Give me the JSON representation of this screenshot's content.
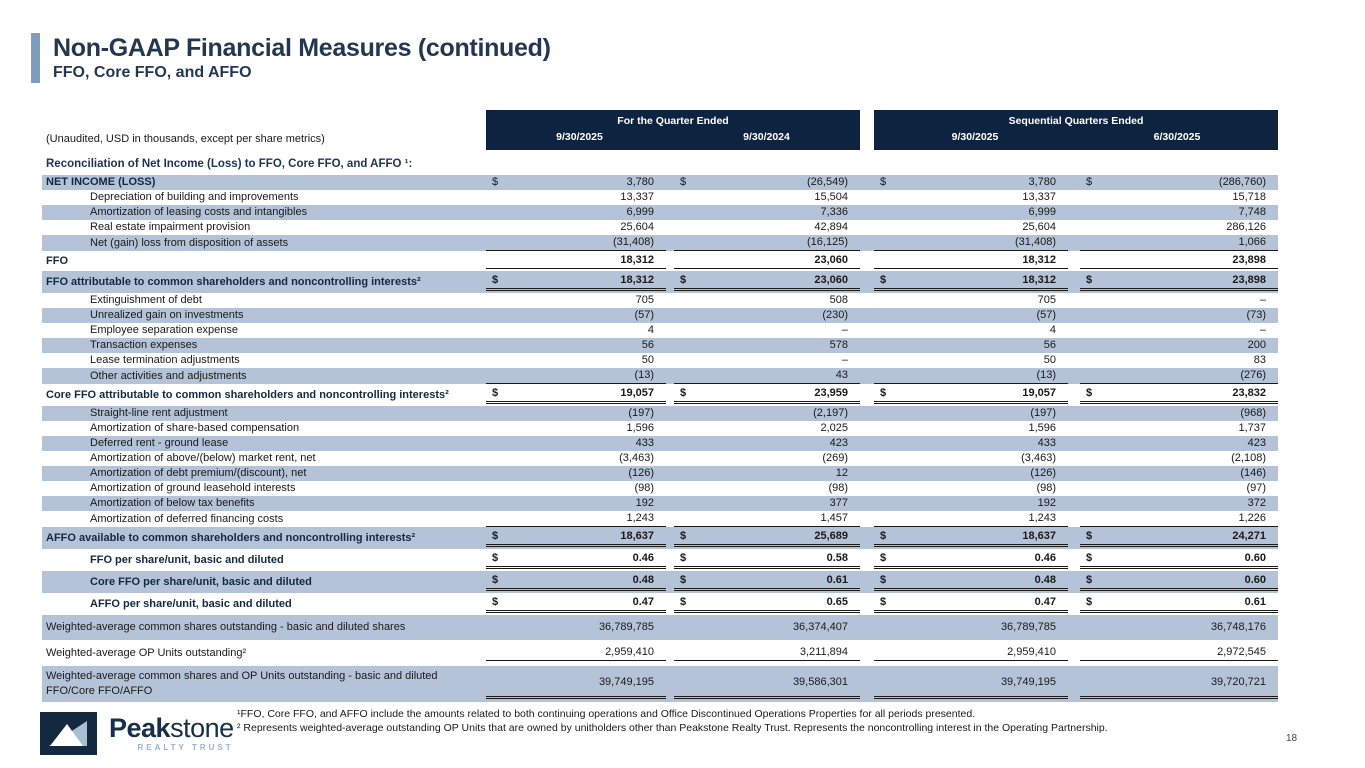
{
  "header": {
    "title": "Non-GAAP Financial Measures (continued)",
    "subtitle": "FFO, Core FFO, and AFFO"
  },
  "table": {
    "unaudited_note": "(Unaudited, USD in thousands, except per share metrics)",
    "section_heading": "Reconciliation of Net Income (Loss) to FFO, Core FFO, and AFFO ¹:",
    "col_groups": [
      {
        "label": "For the Quarter Ended",
        "cols": [
          "9/30/2025",
          "9/30/2024"
        ]
      },
      {
        "label": "Sequential Quarters Ended",
        "cols": [
          "9/30/2025",
          "6/30/2025"
        ]
      }
    ],
    "rows": [
      {
        "label": "NET INCOME (LOSS)",
        "values": [
          "3,780",
          "(26,549)",
          "3,780",
          "(286,760)"
        ],
        "dollar": true,
        "boldLabel": true,
        "boldValues": false,
        "shaded": true,
        "indent": false,
        "rule": "none",
        "size": "std"
      },
      {
        "label": "Depreciation of building and improvements",
        "values": [
          "13,337",
          "15,504",
          "13,337",
          "15,718"
        ],
        "dollar": false,
        "boldLabel": false,
        "boldValues": false,
        "shaded": false,
        "indent": true,
        "rule": "none",
        "size": "std"
      },
      {
        "label": "Amortization of leasing costs and intangibles",
        "values": [
          "6,999",
          "7,336",
          "6,999",
          "7,748"
        ],
        "dollar": false,
        "boldLabel": false,
        "boldValues": false,
        "shaded": true,
        "indent": true,
        "rule": "none",
        "size": "std"
      },
      {
        "label": "Real estate impairment provision",
        "values": [
          "25,604",
          "42,894",
          "25,604",
          "286,126"
        ],
        "dollar": false,
        "boldLabel": false,
        "boldValues": false,
        "shaded": false,
        "indent": true,
        "rule": "none",
        "size": "std"
      },
      {
        "label": "Net (gain) loss from disposition of assets",
        "values": [
          "(31,408)",
          "(16,125)",
          "(31,408)",
          "1,066"
        ],
        "dollar": false,
        "boldLabel": false,
        "boldValues": false,
        "shaded": true,
        "indent": true,
        "rule": "s",
        "size": "std"
      },
      {
        "label": "FFO",
        "values": [
          "18,312",
          "23,060",
          "18,312",
          "23,898"
        ],
        "dollar": false,
        "boldLabel": true,
        "boldValues": true,
        "shaded": false,
        "indent": false,
        "rule": "s",
        "size": "pad"
      },
      {
        "label": "FFO attributable to common shareholders and noncontrolling interests²",
        "values": [
          "18,312",
          "23,060",
          "18,312",
          "23,898"
        ],
        "dollar": true,
        "boldLabel": true,
        "boldValues": true,
        "shaded": true,
        "indent": false,
        "rule": "d",
        "size": "pad"
      },
      {
        "label": "Extinguishment of debt",
        "values": [
          "705",
          "508",
          "705",
          "–"
        ],
        "dollar": false,
        "boldLabel": false,
        "boldValues": false,
        "shaded": false,
        "indent": true,
        "rule": "none",
        "size": "std"
      },
      {
        "label": "Unrealized gain on investments",
        "values": [
          "(57)",
          "(230)",
          "(57)",
          "(73)"
        ],
        "dollar": false,
        "boldLabel": false,
        "boldValues": false,
        "shaded": true,
        "indent": true,
        "rule": "none",
        "size": "std"
      },
      {
        "label": "Employee separation expense",
        "values": [
          "4",
          "–",
          "4",
          "–"
        ],
        "dollar": false,
        "boldLabel": false,
        "boldValues": false,
        "shaded": false,
        "indent": true,
        "rule": "none",
        "size": "std"
      },
      {
        "label": "Transaction expenses",
        "values": [
          "56",
          "578",
          "56",
          "200"
        ],
        "dollar": false,
        "boldLabel": false,
        "boldValues": false,
        "shaded": true,
        "indent": true,
        "rule": "none",
        "size": "std"
      },
      {
        "label": "Lease termination adjustments",
        "values": [
          "50",
          "–",
          "50",
          "83"
        ],
        "dollar": false,
        "boldLabel": false,
        "boldValues": false,
        "shaded": false,
        "indent": true,
        "rule": "none",
        "size": "std"
      },
      {
        "label": "Other activities and adjustments",
        "values": [
          "(13)",
          "43",
          "(13)",
          "(276)"
        ],
        "dollar": false,
        "boldLabel": false,
        "boldValues": false,
        "shaded": true,
        "indent": true,
        "rule": "s",
        "size": "std"
      },
      {
        "label": "Core FFO attributable to common shareholders and noncontrolling interests²",
        "values": [
          "19,057",
          "23,959",
          "19,057",
          "23,832"
        ],
        "dollar": true,
        "boldLabel": true,
        "boldValues": true,
        "shaded": false,
        "indent": false,
        "rule": "d",
        "size": "pad"
      },
      {
        "label": "Straight-line rent adjustment",
        "values": [
          "(197)",
          "(2,197)",
          "(197)",
          "(968)"
        ],
        "dollar": false,
        "boldLabel": false,
        "boldValues": false,
        "shaded": true,
        "indent": true,
        "rule": "none",
        "size": "std"
      },
      {
        "label": "Amortization of share-based compensation",
        "values": [
          "1,596",
          "2,025",
          "1,596",
          "1,737"
        ],
        "dollar": false,
        "boldLabel": false,
        "boldValues": false,
        "shaded": false,
        "indent": true,
        "rule": "none",
        "size": "std"
      },
      {
        "label": "Deferred rent - ground lease",
        "values": [
          "433",
          "423",
          "433",
          "423"
        ],
        "dollar": false,
        "boldLabel": false,
        "boldValues": false,
        "shaded": true,
        "indent": true,
        "rule": "none",
        "size": "std"
      },
      {
        "label": "Amortization of above/(below) market rent, net",
        "values": [
          "(3,463)",
          "(269)",
          "(3,463)",
          "(2,108)"
        ],
        "dollar": false,
        "boldLabel": false,
        "boldValues": false,
        "shaded": false,
        "indent": true,
        "rule": "none",
        "size": "std"
      },
      {
        "label": "Amortization of debt premium/(discount), net",
        "values": [
          "(126)",
          "12",
          "(126)",
          "(146)"
        ],
        "dollar": false,
        "boldLabel": false,
        "boldValues": false,
        "shaded": true,
        "indent": true,
        "rule": "none",
        "size": "std"
      },
      {
        "label": "Amortization of ground leasehold interests",
        "values": [
          "(98)",
          "(98)",
          "(98)",
          "(97)"
        ],
        "dollar": false,
        "boldLabel": false,
        "boldValues": false,
        "shaded": false,
        "indent": true,
        "rule": "none",
        "size": "std"
      },
      {
        "label": "Amortization of below tax benefits",
        "values": [
          "192",
          "377",
          "192",
          "372"
        ],
        "dollar": false,
        "boldLabel": false,
        "boldValues": false,
        "shaded": true,
        "indent": true,
        "rule": "none",
        "size": "std"
      },
      {
        "label": "Amortization of deferred financing costs",
        "values": [
          "1,243",
          "1,457",
          "1,243",
          "1,226"
        ],
        "dollar": false,
        "boldLabel": false,
        "boldValues": false,
        "shaded": false,
        "indent": true,
        "rule": "s",
        "size": "std"
      },
      {
        "label": "AFFO available to common shareholders and noncontrolling interests²",
        "values": [
          "18,637",
          "25,689",
          "18,637",
          "24,271"
        ],
        "dollar": true,
        "boldLabel": true,
        "boldValues": true,
        "shaded": true,
        "indent": false,
        "rule": "d",
        "size": "pad"
      },
      {
        "label": "FFO per share/unit, basic and diluted",
        "values": [
          "0.46",
          "0.58",
          "0.46",
          "0.60"
        ],
        "dollar": true,
        "boldLabel": true,
        "boldValues": true,
        "shaded": false,
        "indent": true,
        "rule": "d",
        "size": "pad"
      },
      {
        "label": "Core FFO per share/unit, basic and diluted",
        "values": [
          "0.48",
          "0.61",
          "0.48",
          "0.60"
        ],
        "dollar": true,
        "boldLabel": true,
        "boldValues": true,
        "shaded": true,
        "indent": true,
        "rule": "d",
        "size": "pad"
      },
      {
        "label": "AFFO per share/unit, basic and diluted",
        "values": [
          "0.47",
          "0.65",
          "0.47",
          "0.61"
        ],
        "dollar": true,
        "boldLabel": true,
        "boldValues": true,
        "shaded": false,
        "indent": true,
        "rule": "d",
        "size": "pad"
      },
      {
        "label": "Weighted-average common shares outstanding - basic and diluted shares",
        "values": [
          "36,789,785",
          "36,374,407",
          "36,789,785",
          "36,748,176"
        ],
        "dollar": false,
        "boldLabel": false,
        "boldValues": false,
        "shaded": true,
        "indent": false,
        "rule": "none",
        "size": "tall"
      },
      {
        "label": "Weighted-average OP Units outstanding²",
        "values": [
          "2,959,410",
          "3,211,894",
          "2,959,410",
          "2,972,545"
        ],
        "dollar": false,
        "boldLabel": false,
        "boldValues": false,
        "shaded": false,
        "indent": false,
        "rule": "s",
        "size": "tall"
      },
      {
        "label": "Weighted-average common shares and OP Units outstanding - basic and diluted FFO/Core FFO/AFFO",
        "values": [
          "39,749,195",
          "39,586,301",
          "39,749,195",
          "39,720,721"
        ],
        "dollar": false,
        "boldLabel": false,
        "boldValues": false,
        "shaded": true,
        "indent": false,
        "rule": "d",
        "size": "xl"
      }
    ]
  },
  "footnotes": [
    "¹FFO, Core FFO, and AFFO include the amounts related to both continuing operations and Office Discontinued Operations Properties for all periods presented.",
    "² Represents weighted-average outstanding OP Units that are owned by unitholders other than Peakstone Realty Trust. Represents the noncontrolling interest in the Operating Partnership."
  ],
  "logo": {
    "name_bold": "Peak",
    "name_rest": "stone",
    "tagline": "REALTY TRUST"
  },
  "page": {
    "number": "18"
  },
  "colors": {
    "navy_header": "#0e2340",
    "row_shade": "#b4c3d7",
    "accent_bar": "#7f9dc0",
    "title_text": "#233750"
  }
}
